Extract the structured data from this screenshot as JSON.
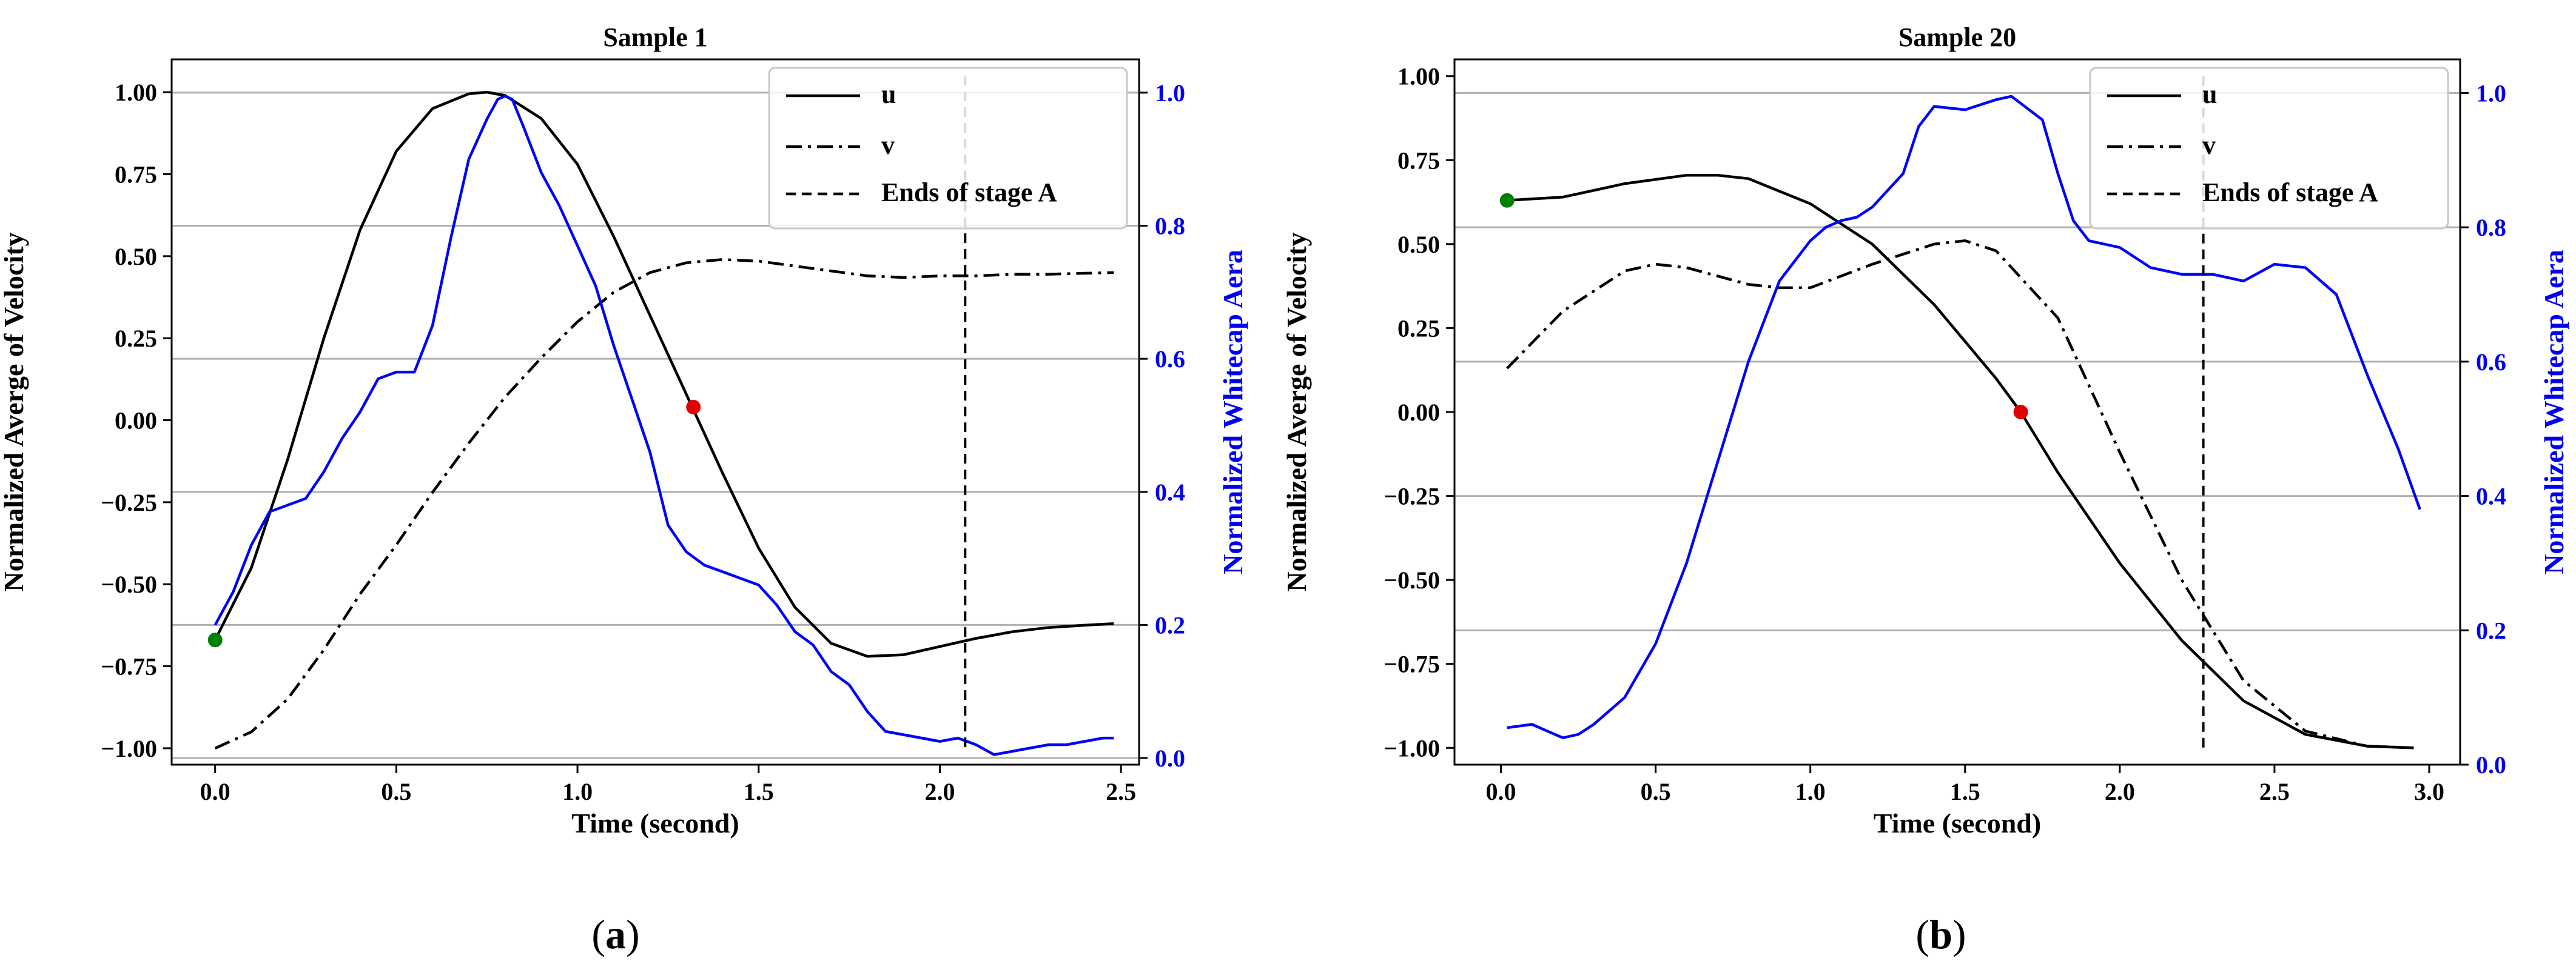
{
  "colors": {
    "u": "#000000",
    "v": "#000000",
    "whitecap": "#0000ff",
    "start_point": "#008000",
    "zero_point": "#e00000",
    "grid": "#b0b0b0",
    "right_axis": "#0000ee"
  },
  "chart_data": [
    {
      "type": "line",
      "title": "Sample 1",
      "caption_letter": "a",
      "xlabel": "Time (second)",
      "ylabel": "Normalized Averge of Velocity",
      "y2label": "Normalized Whitecap Aera",
      "xlim": [
        -0.12,
        2.55
      ],
      "ylim": [
        -1.05,
        1.1
      ],
      "y2lim": [
        -0.01,
        1.05
      ],
      "xticks": [
        0.0,
        0.5,
        1.0,
        1.5,
        2.0,
        2.5
      ],
      "xtick_labels": [
        "0.0",
        "0.5",
        "1.0",
        "1.5",
        "2.0",
        "2.5"
      ],
      "yticks": [
        1.0,
        0.75,
        0.5,
        0.25,
        0.0,
        -0.25,
        -0.5,
        -0.75,
        -1.0
      ],
      "ytick_labels": [
        "1.00",
        "0.75",
        "0.50",
        "0.25",
        "0.00",
        "−0.25",
        "−0.50",
        "−0.75",
        "−1.00"
      ],
      "y2ticks": [
        1.0,
        0.8,
        0.6,
        0.4,
        0.2,
        0.0
      ],
      "y2tick_labels": [
        "1.0",
        "0.8",
        "0.6",
        "0.4",
        "0.2",
        "0.0"
      ],
      "grid_y2": true,
      "legend_position": "top-right",
      "legend": [
        "u",
        "v",
        "Ends of stage A"
      ],
      "series": [
        {
          "name": "u",
          "style": "solid",
          "axis": "left",
          "x": [
            0.0,
            0.1,
            0.2,
            0.3,
            0.4,
            0.5,
            0.6,
            0.7,
            0.75,
            0.8,
            0.9,
            1.0,
            1.1,
            1.2,
            1.3,
            1.4,
            1.5,
            1.6,
            1.7,
            1.8,
            1.9,
            2.0,
            2.1,
            2.2,
            2.3,
            2.4,
            2.48
          ],
          "y": [
            -0.67,
            -0.45,
            -0.12,
            0.25,
            0.58,
            0.82,
            0.95,
            0.995,
            1.0,
            0.99,
            0.92,
            0.78,
            0.56,
            0.32,
            0.08,
            -0.16,
            -0.39,
            -0.57,
            -0.68,
            -0.72,
            -0.715,
            -0.69,
            -0.665,
            -0.645,
            -0.632,
            -0.625,
            -0.62
          ]
        },
        {
          "name": "v",
          "style": "dashdot",
          "axis": "left",
          "x": [
            0.0,
            0.1,
            0.2,
            0.3,
            0.4,
            0.5,
            0.6,
            0.7,
            0.8,
            0.9,
            1.0,
            1.1,
            1.2,
            1.3,
            1.4,
            1.5,
            1.6,
            1.7,
            1.8,
            1.9,
            2.0,
            2.1,
            2.2,
            2.3,
            2.4,
            2.48
          ],
          "y": [
            -1.0,
            -0.95,
            -0.85,
            -0.7,
            -0.53,
            -0.38,
            -0.22,
            -0.07,
            0.07,
            0.19,
            0.3,
            0.39,
            0.45,
            0.48,
            0.49,
            0.485,
            0.47,
            0.455,
            0.44,
            0.435,
            0.44,
            0.44,
            0.445,
            0.445,
            0.448,
            0.45
          ]
        },
        {
          "name": "Normalized Whitecap Aera",
          "style": "solid",
          "axis": "right",
          "x": [
            0.0,
            0.05,
            0.1,
            0.15,
            0.2,
            0.25,
            0.3,
            0.35,
            0.4,
            0.45,
            0.5,
            0.55,
            0.6,
            0.65,
            0.7,
            0.75,
            0.78,
            0.8,
            0.82,
            0.85,
            0.9,
            0.95,
            1.0,
            1.05,
            1.1,
            1.15,
            1.2,
            1.25,
            1.3,
            1.35,
            1.4,
            1.45,
            1.5,
            1.55,
            1.6,
            1.65,
            1.7,
            1.75,
            1.8,
            1.85,
            1.9,
            1.95,
            2.0,
            2.05,
            2.1,
            2.15,
            2.2,
            2.25,
            2.3,
            2.35,
            2.4,
            2.45,
            2.48
          ],
          "y": [
            0.2,
            0.25,
            0.32,
            0.37,
            0.38,
            0.39,
            0.43,
            0.48,
            0.52,
            0.57,
            0.58,
            0.58,
            0.65,
            0.78,
            0.9,
            0.96,
            0.99,
            0.995,
            0.99,
            0.95,
            0.88,
            0.83,
            0.77,
            0.71,
            0.62,
            0.54,
            0.46,
            0.35,
            0.31,
            0.29,
            0.28,
            0.27,
            0.26,
            0.23,
            0.19,
            0.17,
            0.13,
            0.11,
            0.07,
            0.04,
            0.035,
            0.03,
            0.025,
            0.03,
            0.02,
            0.005,
            0.01,
            0.015,
            0.02,
            0.02,
            0.025,
            0.03,
            0.03
          ]
        }
      ],
      "vline": {
        "label": "Ends of stage A",
        "x": 2.07
      },
      "markers": [
        {
          "name": "start",
          "axis": "left",
          "x": 0.0,
          "y": -0.67,
          "color": "#008000"
        },
        {
          "name": "zero-crossing",
          "axis": "left",
          "x": 1.32,
          "y": 0.04,
          "color": "#e00000"
        }
      ]
    },
    {
      "type": "line",
      "title": "Sample 20",
      "caption_letter": "b",
      "xlabel": "Time (second)",
      "ylabel": "Normalized Averge of Velocity",
      "y2label": "Normalized Whitecap Aera",
      "xlim": [
        -0.15,
        3.1
      ],
      "ylim": [
        -1.05,
        1.05
      ],
      "y2lim": [
        0.0,
        1.05
      ],
      "xticks": [
        0.0,
        0.5,
        1.0,
        1.5,
        2.0,
        2.5,
        3.0
      ],
      "xtick_labels": [
        "0.0",
        "0.5",
        "1.0",
        "1.5",
        "2.0",
        "2.5",
        "3.0"
      ],
      "yticks": [
        1.0,
        0.75,
        0.5,
        0.25,
        0.0,
        -0.25,
        -0.5,
        -0.75,
        -1.0
      ],
      "ytick_labels": [
        "1.00",
        "0.75",
        "0.50",
        "0.25",
        "0.00",
        "−0.25",
        "−0.50",
        "−0.75",
        "−1.00"
      ],
      "y2ticks": [
        1.0,
        0.8,
        0.6,
        0.4,
        0.2,
        0.0
      ],
      "y2tick_labels": [
        "1.0",
        "0.8",
        "0.6",
        "0.4",
        "0.2",
        "0.0"
      ],
      "grid_y2": true,
      "legend_position": "top-right",
      "legend": [
        "u",
        "v",
        "Ends of stage A"
      ],
      "series": [
        {
          "name": "u",
          "style": "solid",
          "axis": "left",
          "x": [
            0.02,
            0.2,
            0.4,
            0.6,
            0.7,
            0.8,
            1.0,
            1.2,
            1.4,
            1.5,
            1.6,
            1.68,
            1.8,
            2.0,
            2.2,
            2.4,
            2.6,
            2.8,
            2.95
          ],
          "y": [
            0.63,
            0.64,
            0.68,
            0.705,
            0.705,
            0.695,
            0.62,
            0.5,
            0.32,
            0.21,
            0.1,
            0.0,
            -0.18,
            -0.45,
            -0.68,
            -0.86,
            -0.96,
            -0.995,
            -1.0
          ]
        },
        {
          "name": "v",
          "style": "dashdot",
          "axis": "left",
          "x": [
            0.02,
            0.2,
            0.4,
            0.5,
            0.6,
            0.8,
            0.9,
            1.0,
            1.2,
            1.4,
            1.5,
            1.6,
            1.8,
            2.0,
            2.2,
            2.4,
            2.6,
            2.8,
            2.95
          ],
          "y": [
            0.13,
            0.3,
            0.42,
            0.44,
            0.43,
            0.38,
            0.37,
            0.37,
            0.44,
            0.5,
            0.51,
            0.48,
            0.28,
            -0.12,
            -0.5,
            -0.8,
            -0.95,
            -0.995,
            -1.0
          ]
        },
        {
          "name": "Normalized Whitecap Aera",
          "style": "solid",
          "axis": "right",
          "x": [
            0.02,
            0.1,
            0.2,
            0.25,
            0.3,
            0.4,
            0.5,
            0.6,
            0.7,
            0.8,
            0.9,
            1.0,
            1.05,
            1.1,
            1.15,
            1.2,
            1.3,
            1.35,
            1.4,
            1.5,
            1.6,
            1.65,
            1.75,
            1.8,
            1.85,
            1.9,
            2.0,
            2.1,
            2.2,
            2.3,
            2.4,
            2.5,
            2.6,
            2.7,
            2.8,
            2.9,
            2.97
          ],
          "y": [
            0.055,
            0.06,
            0.04,
            0.045,
            0.06,
            0.1,
            0.18,
            0.3,
            0.45,
            0.6,
            0.72,
            0.78,
            0.8,
            0.81,
            0.815,
            0.83,
            0.88,
            0.95,
            0.98,
            0.975,
            0.99,
            0.995,
            0.96,
            0.88,
            0.81,
            0.78,
            0.77,
            0.74,
            0.73,
            0.73,
            0.72,
            0.745,
            0.74,
            0.7,
            0.58,
            0.47,
            0.38
          ]
        }
      ],
      "vline": {
        "label": "Ends of stage A",
        "x": 2.27
      },
      "markers": [
        {
          "name": "start",
          "axis": "left",
          "x": 0.02,
          "y": 0.63,
          "color": "#008000"
        },
        {
          "name": "zero-crossing",
          "axis": "left",
          "x": 1.68,
          "y": 0.0,
          "color": "#e00000"
        }
      ]
    }
  ]
}
